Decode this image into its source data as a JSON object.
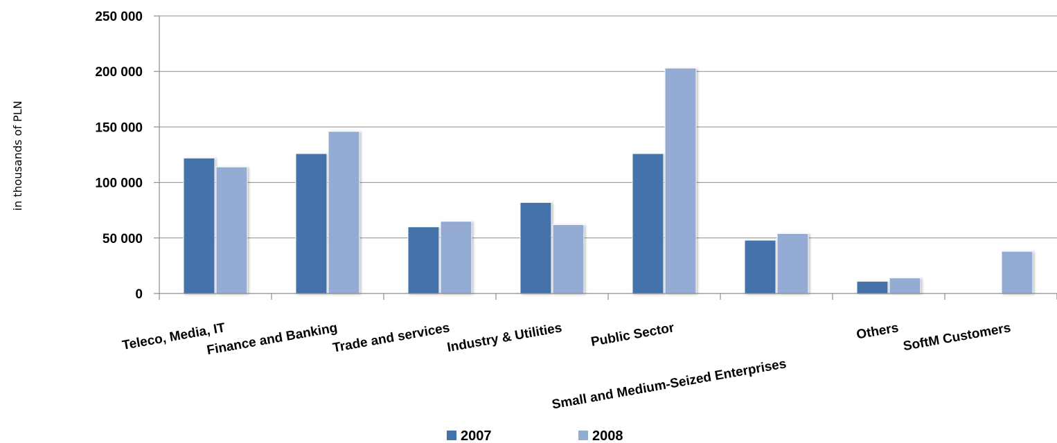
{
  "chart_data": {
    "type": "bar",
    "title": "",
    "xlabel": "",
    "ylabel": "in thousands of PLN",
    "ylim": [
      0,
      250000
    ],
    "yticks": [
      0,
      50000,
      100000,
      150000,
      200000,
      250000
    ],
    "ytick_labels": [
      "0",
      "50 000",
      "100 000",
      "150 000",
      "200 000",
      "250 000"
    ],
    "grid": true,
    "legend_position": "bottom",
    "categories": [
      "Teleco, Media, IT",
      "Finance and Banking",
      "Trade and services",
      "Industry & Utilities",
      "Public Sector",
      "Small and Medium-Seized Enterprises",
      "Others",
      "SoftM Customers"
    ],
    "series": [
      {
        "name": "2007",
        "color": "#4472a8",
        "values": [
          122000,
          126000,
          60000,
          82000,
          126000,
          48000,
          11000,
          0
        ]
      },
      {
        "name": "2008",
        "color": "#94abd3",
        "values": [
          114000,
          146000,
          65000,
          62000,
          203000,
          54000,
          14000,
          38000
        ]
      }
    ]
  }
}
